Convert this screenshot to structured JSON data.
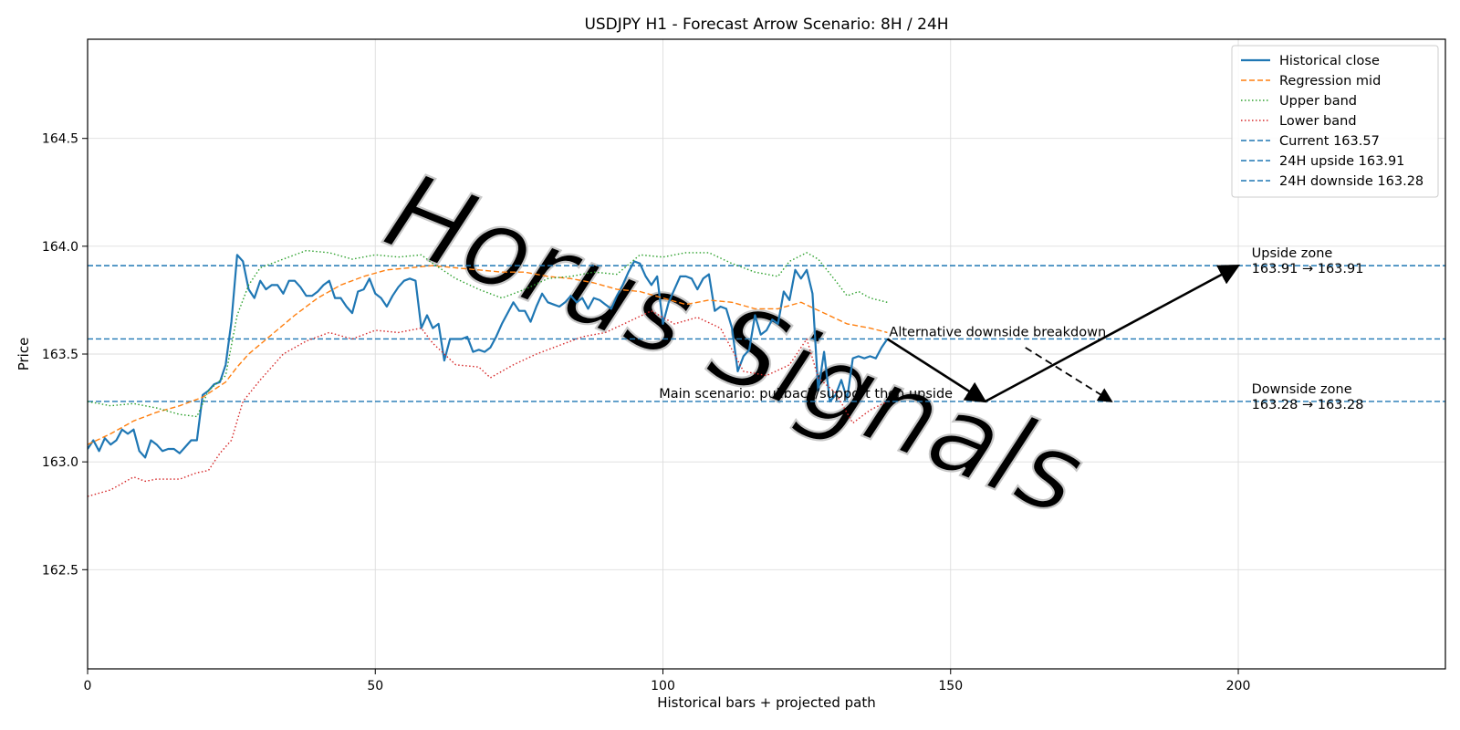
{
  "chart_data": {
    "type": "line",
    "title": "USDJPY H1 - Forecast Arrow Scenario: 8H / 24H",
    "xlabel": "Historical bars + projected path",
    "ylabel": "Price",
    "xlim": [
      0,
      236
    ],
    "ylim": [
      162.04,
      164.96
    ],
    "xticks": [
      0,
      50,
      100,
      150,
      200
    ],
    "yticks": [
      162.5,
      163.0,
      163.5,
      164.0,
      164.5
    ],
    "grid": true,
    "legend_position": "top-right",
    "series": [
      {
        "name": "Historical close",
        "style": "solid",
        "color": "#1f77b4",
        "points": [
          [
            0,
            163.06
          ],
          [
            1,
            163.1
          ],
          [
            2,
            163.05
          ],
          [
            3,
            163.11
          ],
          [
            4,
            163.08
          ],
          [
            5,
            163.1
          ],
          [
            6,
            163.15
          ],
          [
            7,
            163.13
          ],
          [
            8,
            163.15
          ],
          [
            9,
            163.05
          ],
          [
            10,
            163.02
          ],
          [
            11,
            163.1
          ],
          [
            12,
            163.08
          ],
          [
            13,
            163.05
          ],
          [
            14,
            163.06
          ],
          [
            15,
            163.06
          ],
          [
            16,
            163.04
          ],
          [
            17,
            163.07
          ],
          [
            18,
            163.1
          ],
          [
            19,
            163.1
          ],
          [
            20,
            163.31
          ],
          [
            21,
            163.33
          ],
          [
            22,
            163.36
          ],
          [
            23,
            163.37
          ],
          [
            24,
            163.45
          ],
          [
            25,
            163.65
          ],
          [
            26,
            163.96
          ],
          [
            27,
            163.93
          ],
          [
            28,
            163.8
          ],
          [
            29,
            163.76
          ],
          [
            30,
            163.84
          ],
          [
            31,
            163.8
          ],
          [
            32,
            163.82
          ],
          [
            33,
            163.82
          ],
          [
            34,
            163.78
          ],
          [
            35,
            163.84
          ],
          [
            36,
            163.84
          ],
          [
            37,
            163.81
          ],
          [
            38,
            163.77
          ],
          [
            39,
            163.77
          ],
          [
            40,
            163.79
          ],
          [
            41,
            163.82
          ],
          [
            42,
            163.84
          ],
          [
            43,
            163.76
          ],
          [
            44,
            163.76
          ],
          [
            45,
            163.72
          ],
          [
            46,
            163.69
          ],
          [
            47,
            163.79
          ],
          [
            48,
            163.8
          ],
          [
            49,
            163.85
          ],
          [
            50,
            163.78
          ],
          [
            51,
            163.76
          ],
          [
            52,
            163.72
          ],
          [
            53,
            163.77
          ],
          [
            54,
            163.81
          ],
          [
            55,
            163.84
          ],
          [
            56,
            163.85
          ],
          [
            57,
            163.84
          ],
          [
            58,
            163.62
          ],
          [
            59,
            163.68
          ],
          [
            60,
            163.62
          ],
          [
            61,
            163.64
          ],
          [
            62,
            163.47
          ],
          [
            63,
            163.57
          ],
          [
            64,
            163.57
          ],
          [
            65,
            163.57
          ],
          [
            66,
            163.58
          ],
          [
            67,
            163.51
          ],
          [
            68,
            163.52
          ],
          [
            69,
            163.51
          ],
          [
            70,
            163.53
          ],
          [
            71,
            163.58
          ],
          [
            72,
            163.64
          ],
          [
            73,
            163.69
          ],
          [
            74,
            163.74
          ],
          [
            75,
            163.7
          ],
          [
            76,
            163.7
          ],
          [
            77,
            163.65
          ],
          [
            78,
            163.72
          ],
          [
            79,
            163.78
          ],
          [
            80,
            163.74
          ],
          [
            81,
            163.73
          ],
          [
            82,
            163.72
          ],
          [
            83,
            163.74
          ],
          [
            84,
            163.77
          ],
          [
            85,
            163.74
          ],
          [
            86,
            163.76
          ],
          [
            87,
            163.71
          ],
          [
            88,
            163.76
          ],
          [
            89,
            163.75
          ],
          [
            90,
            163.73
          ],
          [
            91,
            163.71
          ],
          [
            92,
            163.77
          ],
          [
            93,
            163.82
          ],
          [
            94,
            163.88
          ],
          [
            95,
            163.93
          ],
          [
            96,
            163.92
          ],
          [
            97,
            163.86
          ],
          [
            98,
            163.82
          ],
          [
            99,
            163.86
          ],
          [
            100,
            163.64
          ],
          [
            101,
            163.74
          ],
          [
            102,
            163.8
          ],
          [
            103,
            163.86
          ],
          [
            104,
            163.86
          ],
          [
            105,
            163.85
          ],
          [
            106,
            163.8
          ],
          [
            107,
            163.85
          ],
          [
            108,
            163.87
          ],
          [
            109,
            163.7
          ],
          [
            110,
            163.72
          ],
          [
            111,
            163.71
          ],
          [
            112,
            163.62
          ],
          [
            113,
            163.42
          ],
          [
            114,
            163.49
          ],
          [
            115,
            163.52
          ],
          [
            116,
            163.68
          ],
          [
            117,
            163.59
          ],
          [
            118,
            163.61
          ],
          [
            119,
            163.66
          ],
          [
            120,
            163.64
          ],
          [
            121,
            163.79
          ],
          [
            122,
            163.75
          ],
          [
            123,
            163.89
          ],
          [
            124,
            163.85
          ],
          [
            125,
            163.89
          ],
          [
            126,
            163.78
          ],
          [
            127,
            163.33
          ],
          [
            128,
            163.51
          ],
          [
            129,
            163.28
          ],
          [
            130,
            163.31
          ],
          [
            131,
            163.38
          ],
          [
            132,
            163.29
          ],
          [
            133,
            163.48
          ],
          [
            134,
            163.49
          ],
          [
            135,
            163.48
          ],
          [
            136,
            163.49
          ],
          [
            137,
            163.48
          ],
          [
            138,
            163.53
          ],
          [
            139,
            163.57
          ]
        ]
      },
      {
        "name": "Regression mid",
        "style": "dashed",
        "color": "#ff7f0e",
        "points": [
          [
            0,
            163.08
          ],
          [
            4,
            163.13
          ],
          [
            8,
            163.19
          ],
          [
            12,
            163.23
          ],
          [
            16,
            163.26
          ],
          [
            20,
            163.3
          ],
          [
            24,
            163.37
          ],
          [
            26,
            163.44
          ],
          [
            28,
            163.5
          ],
          [
            32,
            163.59
          ],
          [
            36,
            163.68
          ],
          [
            40,
            163.76
          ],
          [
            44,
            163.82
          ],
          [
            48,
            163.86
          ],
          [
            52,
            163.89
          ],
          [
            56,
            163.9
          ],
          [
            60,
            163.91
          ],
          [
            64,
            163.9
          ],
          [
            68,
            163.89
          ],
          [
            72,
            163.88
          ],
          [
            76,
            163.88
          ],
          [
            80,
            163.86
          ],
          [
            84,
            163.85
          ],
          [
            88,
            163.83
          ],
          [
            92,
            163.8
          ],
          [
            96,
            163.79
          ],
          [
            100,
            163.76
          ],
          [
            104,
            163.73
          ],
          [
            108,
            163.75
          ],
          [
            112,
            163.74
          ],
          [
            116,
            163.71
          ],
          [
            120,
            163.71
          ],
          [
            124,
            163.74
          ],
          [
            128,
            163.69
          ],
          [
            132,
            163.64
          ],
          [
            136,
            163.62
          ],
          [
            139,
            163.6
          ]
        ]
      },
      {
        "name": "Upper band",
        "style": "dotted",
        "color": "#2ca02c",
        "points": [
          [
            0,
            163.28
          ],
          [
            4,
            163.26
          ],
          [
            8,
            163.27
          ],
          [
            12,
            163.25
          ],
          [
            16,
            163.22
          ],
          [
            19,
            163.21
          ],
          [
            21,
            163.33
          ],
          [
            24,
            163.4
          ],
          [
            26,
            163.68
          ],
          [
            28,
            163.82
          ],
          [
            30,
            163.9
          ],
          [
            34,
            163.94
          ],
          [
            38,
            163.98
          ],
          [
            42,
            163.97
          ],
          [
            46,
            163.94
          ],
          [
            50,
            163.96
          ],
          [
            54,
            163.95
          ],
          [
            58,
            163.96
          ],
          [
            60,
            163.92
          ],
          [
            64,
            163.85
          ],
          [
            68,
            163.8
          ],
          [
            72,
            163.76
          ],
          [
            76,
            163.8
          ],
          [
            80,
            163.85
          ],
          [
            84,
            163.86
          ],
          [
            88,
            163.88
          ],
          [
            92,
            163.87
          ],
          [
            96,
            163.96
          ],
          [
            100,
            163.95
          ],
          [
            104,
            163.97
          ],
          [
            108,
            163.97
          ],
          [
            112,
            163.92
          ],
          [
            116,
            163.88
          ],
          [
            120,
            163.86
          ],
          [
            122,
            163.93
          ],
          [
            125,
            163.97
          ],
          [
            127,
            163.94
          ],
          [
            130,
            163.84
          ],
          [
            132,
            163.77
          ],
          [
            134,
            163.79
          ],
          [
            136,
            163.76
          ],
          [
            139,
            163.74
          ]
        ]
      },
      {
        "name": "Lower band",
        "style": "dotted",
        "color": "#d62728",
        "points": [
          [
            0,
            162.84
          ],
          [
            4,
            162.87
          ],
          [
            8,
            162.93
          ],
          [
            10,
            162.91
          ],
          [
            12,
            162.92
          ],
          [
            16,
            162.92
          ],
          [
            19,
            162.95
          ],
          [
            21,
            162.96
          ],
          [
            23,
            163.04
          ],
          [
            25,
            163.1
          ],
          [
            27,
            163.28
          ],
          [
            30,
            163.38
          ],
          [
            34,
            163.5
          ],
          [
            38,
            163.56
          ],
          [
            42,
            163.6
          ],
          [
            46,
            163.57
          ],
          [
            50,
            163.61
          ],
          [
            54,
            163.6
          ],
          [
            58,
            163.62
          ],
          [
            60,
            163.55
          ],
          [
            64,
            163.45
          ],
          [
            68,
            163.44
          ],
          [
            70,
            163.39
          ],
          [
            74,
            163.45
          ],
          [
            78,
            163.5
          ],
          [
            82,
            163.54
          ],
          [
            86,
            163.58
          ],
          [
            90,
            163.6
          ],
          [
            94,
            163.65
          ],
          [
            98,
            163.7
          ],
          [
            102,
            163.64
          ],
          [
            106,
            163.67
          ],
          [
            110,
            163.62
          ],
          [
            114,
            163.42
          ],
          [
            118,
            163.4
          ],
          [
            122,
            163.45
          ],
          [
            125,
            163.57
          ],
          [
            127,
            163.39
          ],
          [
            130,
            163.32
          ],
          [
            133,
            163.18
          ],
          [
            136,
            163.24
          ],
          [
            139,
            163.28
          ]
        ]
      }
    ],
    "hlines": [
      {
        "name": "Current 163.57",
        "y": 163.57,
        "color": "#1f77b4"
      },
      {
        "name": "24H upside 163.91",
        "y": 163.91,
        "color": "#1f77b4"
      },
      {
        "name": "24H downside 163.28",
        "y": 163.28,
        "color": "#1f77b4"
      }
    ],
    "arrows": [
      {
        "from": [
          139,
          163.57
        ],
        "to": [
          156,
          163.28
        ],
        "style": "solid"
      },
      {
        "from": [
          156,
          163.28
        ],
        "to": [
          200,
          163.91
        ],
        "style": "solid"
      },
      {
        "from": [
          163,
          163.53
        ],
        "to": [
          178,
          163.28
        ],
        "style": "dashed"
      }
    ],
    "annotations": [
      {
        "id": "alt",
        "text": "Alternative downside breakdown",
        "x": 139,
        "y": 163.57,
        "anchor": "start"
      },
      {
        "id": "main",
        "text": "Main scenario: pullback/support then upside",
        "x": 99,
        "y": 163.28,
        "anchor": "start"
      },
      {
        "id": "upzone1",
        "text": "Upside zone",
        "x": 202,
        "y": 163.91,
        "anchor": "start"
      },
      {
        "id": "upzone2",
        "text": "163.91 → 163.91",
        "x": 202,
        "y": 163.91,
        "anchor": "start"
      },
      {
        "id": "downzone1",
        "text": "Downside zone",
        "x": 202,
        "y": 163.28,
        "anchor": "start"
      },
      {
        "id": "downzone2",
        "text": "163.28 → 163.28",
        "x": 202,
        "y": 163.28,
        "anchor": "start"
      }
    ],
    "watermark": "Horus Signals"
  }
}
